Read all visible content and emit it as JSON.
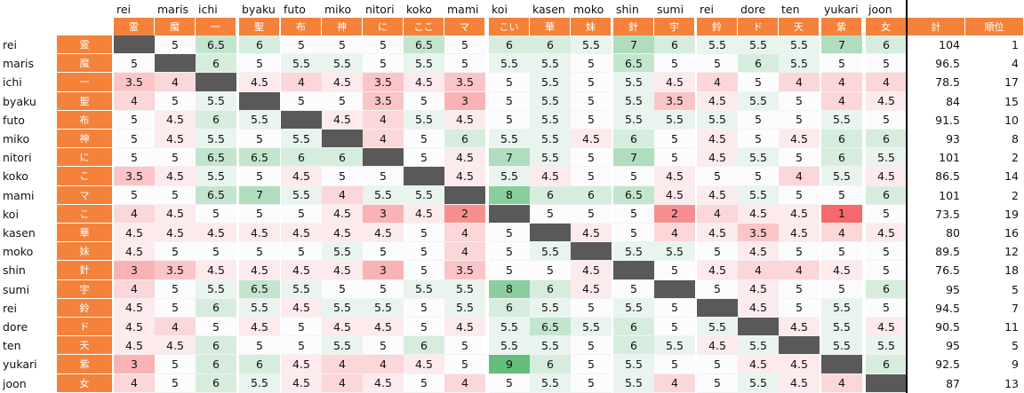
{
  "columns": [
    {
      "name": "rei",
      "kanji": "霊"
    },
    {
      "name": "maris",
      "kanji": "魔"
    },
    {
      "name": "ichi",
      "kanji": "一"
    },
    {
      "name": "byaku",
      "kanji": "聖"
    },
    {
      "name": "futo",
      "kanji": "布"
    },
    {
      "name": "miko",
      "kanji": "神"
    },
    {
      "name": "nitori",
      "kanji": "に"
    },
    {
      "name": "koko",
      "kanji": "ここ"
    },
    {
      "name": "mami",
      "kanji": "マ"
    },
    {
      "name": "koi",
      "kanji": "こい"
    },
    {
      "name": "kasen",
      "kanji": "華"
    },
    {
      "name": "moko",
      "kanji": "妹"
    },
    {
      "name": "shin",
      "kanji": "針"
    },
    {
      "name": "sumi",
      "kanji": "宇"
    },
    {
      "name": "rei",
      "kanji": "鈴"
    },
    {
      "name": "dore",
      "kanji": "ド"
    },
    {
      "name": "ten",
      "kanji": "天"
    },
    {
      "name": "yukari",
      "kanji": "紫"
    },
    {
      "name": "joon",
      "kanji": "女"
    }
  ],
  "total_header": "計",
  "rank_header": "順位",
  "rows": [
    {
      "name": "rei",
      "kanji": "霊",
      "values": [
        null,
        "5",
        "6.5",
        "6",
        "5",
        "5",
        "5",
        "6.5",
        "5",
        "6",
        "6",
        "5.5",
        "7",
        "6",
        "5.5",
        "5.5",
        "5.5",
        "7",
        "6"
      ],
      "total": "104",
      "rank": "1"
    },
    {
      "name": "maris",
      "kanji": "魔",
      "values": [
        "5",
        null,
        "6",
        "5",
        "5.5",
        "5.5",
        "5",
        "5.5",
        "5",
        "5.5",
        "5.5",
        "5",
        "6.5",
        "5",
        "5",
        "6",
        "5.5",
        "5",
        "5"
      ],
      "total": "96.5",
      "rank": "4"
    },
    {
      "name": "ichi",
      "kanji": "一",
      "values": [
        "3.5",
        "4",
        null,
        "4.5",
        "4",
        "4.5",
        "3.5",
        "4.5",
        "3.5",
        "5",
        "5.5",
        "5",
        "5.5",
        "4.5",
        "4",
        "5",
        "4",
        "4",
        "4"
      ],
      "total": "78.5",
      "rank": "17"
    },
    {
      "name": "byaku",
      "kanji": "聖",
      "values": [
        "4",
        "5",
        "5.5",
        null,
        "5",
        "5",
        "3.5",
        "5",
        "3",
        "5",
        "5.5",
        "5",
        "5.5",
        "3.5",
        "4.5",
        "5.5",
        "5",
        "4",
        "4.5"
      ],
      "total": "84",
      "rank": "15"
    },
    {
      "name": "futo",
      "kanji": "布",
      "values": [
        "5",
        "4.5",
        "6",
        "5.5",
        null,
        "4.5",
        "4",
        "5.5",
        "4.5",
        "5",
        "5.5",
        "5",
        "5.5",
        "5.5",
        "5.5",
        "5",
        "5",
        "5.5",
        "5"
      ],
      "total": "91.5",
      "rank": "10"
    },
    {
      "name": "miko",
      "kanji": "神",
      "values": [
        "5",
        "4.5",
        "5.5",
        "5",
        "5.5",
        null,
        "4",
        "5",
        "6",
        "5.5",
        "5.5",
        "4.5",
        "6",
        "5",
        "4.5",
        "5",
        "4.5",
        "6",
        "6"
      ],
      "total": "93",
      "rank": "8"
    },
    {
      "name": "nitori",
      "kanji": "に",
      "values": [
        "5",
        "5",
        "6.5",
        "6.5",
        "6",
        "6",
        null,
        "5",
        "4.5",
        "7",
        "5.5",
        "5",
        "7",
        "5",
        "4.5",
        "5.5",
        "5",
        "6",
        "5.5"
      ],
      "total": "101",
      "rank": "2"
    },
    {
      "name": "koko",
      "kanji": "こ",
      "values": [
        "3.5",
        "4.5",
        "5.5",
        "5",
        "4.5",
        "5",
        "5",
        null,
        "4.5",
        "5.5",
        "4.5",
        "5",
        "5",
        "4.5",
        "5",
        "5",
        "4",
        "5.5",
        "4.5"
      ],
      "total": "86.5",
      "rank": "14"
    },
    {
      "name": "mami",
      "kanji": "マ",
      "values": [
        "5",
        "5",
        "6.5",
        "7",
        "5.5",
        "4",
        "5.5",
        "5.5",
        null,
        "8",
        "6",
        "6",
        "6.5",
        "4.5",
        "4.5",
        "5.5",
        "5",
        "5",
        "6"
      ],
      "total": "101",
      "rank": "2"
    },
    {
      "name": "koi",
      "kanji": "こ",
      "values": [
        "4",
        "4.5",
        "5",
        "5",
        "5",
        "4.5",
        "3",
        "4.5",
        "2",
        null,
        "5",
        "5",
        "5",
        "2",
        "4",
        "4.5",
        "4.5",
        "1",
        "5"
      ],
      "total": "73.5",
      "rank": "19"
    },
    {
      "name": "kasen",
      "kanji": "華",
      "values": [
        "4.5",
        "4.5",
        "4.5",
        "4.5",
        "4.5",
        "4.5",
        "4.5",
        "5",
        "4",
        "5",
        null,
        "4.5",
        "5",
        "4",
        "4.5",
        "3.5",
        "4.5",
        "4",
        "4.5"
      ],
      "total": "80",
      "rank": "16"
    },
    {
      "name": "moko",
      "kanji": "妹",
      "values": [
        "4.5",
        "5",
        "5",
        "5",
        "5",
        "5.5",
        "5",
        "5",
        "4",
        "5",
        "5.5",
        null,
        "5.5",
        "5.5",
        "5",
        "4.5",
        "5",
        "5",
        "5"
      ],
      "total": "89.5",
      "rank": "12"
    },
    {
      "name": "shin",
      "kanji": "針",
      "values": [
        "3",
        "3.5",
        "4.5",
        "4.5",
        "4.5",
        "4.5",
        "3",
        "5",
        "3.5",
        "5",
        "5",
        "4.5",
        null,
        "5",
        "4.5",
        "4",
        "4",
        "4.5",
        "5"
      ],
      "total": "76.5",
      "rank": "18"
    },
    {
      "name": "sumi",
      "kanji": "宇",
      "values": [
        "4",
        "5",
        "5.5",
        "6.5",
        "5.5",
        "5",
        "5",
        "5.5",
        "5.5",
        "8",
        "6",
        "4.5",
        "5",
        null,
        "5",
        "4.5",
        "5",
        "5",
        "6"
      ],
      "total": "95",
      "rank": "5"
    },
    {
      "name": "rei",
      "kanji": "鈴",
      "values": [
        "4.5",
        "5",
        "6",
        "5.5",
        "4.5",
        "5.5",
        "5.5",
        "5",
        "5.5",
        "6",
        "5.5",
        "5",
        "5.5",
        "5",
        null,
        "4.5",
        "5",
        "5.5",
        "5"
      ],
      "total": "94.5",
      "rank": "7"
    },
    {
      "name": "dore",
      "kanji": "ド",
      "values": [
        "4.5",
        "4",
        "5",
        "4.5",
        "5",
        "4.5",
        "4.5",
        "5",
        "4.5",
        "5.5",
        "6.5",
        "5.5",
        "6",
        "5",
        "5.5",
        null,
        "4.5",
        "5.5",
        "4.5"
      ],
      "total": "90.5",
      "rank": "11"
    },
    {
      "name": "ten",
      "kanji": "天",
      "values": [
        "4.5",
        "4.5",
        "6",
        "5",
        "5",
        "5.5",
        "5",
        "6",
        "5",
        "5.5",
        "5.5",
        "5",
        "6",
        "5.5",
        "4.5",
        "5.5",
        null,
        "5.5",
        "5.5"
      ],
      "total": "95",
      "rank": "5"
    },
    {
      "name": "yukari",
      "kanji": "紫",
      "values": [
        "3",
        "5",
        "6",
        "6",
        "4.5",
        "4",
        "4",
        "4.5",
        "5",
        "9",
        "6",
        "5",
        "5.5",
        "5",
        "5",
        "4.5",
        "4.5",
        null,
        "6"
      ],
      "total": "92.5",
      "rank": "9"
    },
    {
      "name": "joon",
      "kanji": "女",
      "values": [
        "4",
        "5",
        "6",
        "5.5",
        "4.5",
        "4",
        "4.5",
        "5",
        "4",
        "5",
        "5.5",
        "5",
        "5.5",
        "4",
        "5",
        "5.5",
        "4.5",
        "4",
        null
      ],
      "total": "87",
      "rank": "13"
    }
  ],
  "colors": {
    "header_orange": "#f4823b",
    "diagonal": "#595959",
    "high": "#63be7b",
    "mid": "#fcfcff",
    "low": "#f8696b"
  }
}
